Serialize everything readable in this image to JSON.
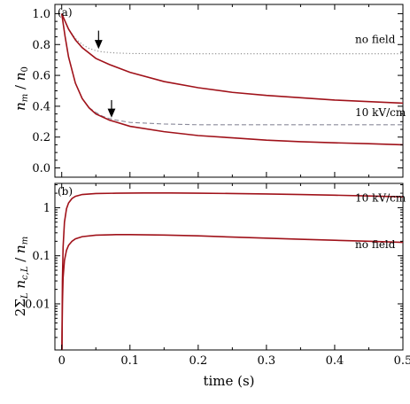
{
  "chart_data": [
    {
      "type": "line",
      "panel_label": "(a)",
      "xlabel": "",
      "ylabel_html": "n_m / n_0",
      "xlim": [
        -0.01,
        0.5
      ],
      "ylim": [
        -0.06,
        1.06
      ],
      "xticks": [
        0,
        0.1,
        0.2,
        0.3,
        0.4,
        0.5
      ],
      "yticks": [
        0.0,
        0.2,
        0.4,
        0.6,
        0.8,
        1.0
      ],
      "ytick_labels": [
        "0.0",
        "0.2",
        "0.4",
        "0.6",
        "0.8",
        "1.0"
      ],
      "series": [
        {
          "style": "dotted",
          "color": "#888888",
          "x": [
            0,
            0.005,
            0.01,
            0.02,
            0.03,
            0.04,
            0.05,
            0.06,
            0.08,
            0.1,
            0.15,
            0.2,
            0.3,
            0.4,
            0.5
          ],
          "y": [
            1.0,
            0.95,
            0.9,
            0.84,
            0.8,
            0.775,
            0.76,
            0.752,
            0.745,
            0.742,
            0.74,
            0.74,
            0.74,
            0.74,
            0.74
          ]
        },
        {
          "style": "solid",
          "color": "#a0121a",
          "x": [
            0,
            0.005,
            0.01,
            0.02,
            0.03,
            0.05,
            0.07,
            0.1,
            0.15,
            0.2,
            0.25,
            0.3,
            0.35,
            0.4,
            0.45,
            0.5
          ],
          "y": [
            1.0,
            0.95,
            0.9,
            0.83,
            0.78,
            0.71,
            0.67,
            0.62,
            0.56,
            0.52,
            0.49,
            0.47,
            0.455,
            0.44,
            0.43,
            0.42
          ]
        },
        {
          "style": "dashed",
          "color": "#8a8a9a",
          "x": [
            0,
            0.005,
            0.01,
            0.02,
            0.03,
            0.04,
            0.05,
            0.06,
            0.07,
            0.08,
            0.1,
            0.15,
            0.2,
            0.3,
            0.4,
            0.5
          ],
          "y": [
            1.0,
            0.85,
            0.72,
            0.55,
            0.45,
            0.39,
            0.36,
            0.335,
            0.32,
            0.31,
            0.295,
            0.285,
            0.28,
            0.28,
            0.28,
            0.28
          ]
        },
        {
          "style": "solid",
          "color": "#a0121a",
          "x": [
            0,
            0.005,
            0.01,
            0.02,
            0.03,
            0.04,
            0.05,
            0.07,
            0.1,
            0.15,
            0.2,
            0.25,
            0.3,
            0.35,
            0.4,
            0.45,
            0.5
          ],
          "y": [
            1.0,
            0.85,
            0.72,
            0.55,
            0.45,
            0.39,
            0.35,
            0.31,
            0.27,
            0.235,
            0.21,
            0.195,
            0.18,
            0.17,
            0.163,
            0.157,
            0.15
          ]
        }
      ],
      "annotations": [
        {
          "text": "no field",
          "x": 0.43,
          "y": 0.81
        },
        {
          "text": "10 kV/cm",
          "x": 0.43,
          "y": 0.335
        }
      ],
      "arrows": [
        {
          "x": 0.054,
          "y_from": 0.89,
          "y_to": 0.78
        },
        {
          "x": 0.073,
          "y_from": 0.44,
          "y_to": 0.335
        }
      ]
    },
    {
      "type": "line",
      "panel_label": "(b)",
      "xlabel": "time (s)",
      "ylabel_html": "2Σ_L n_{c,L} / n_m",
      "xlim": [
        -0.01,
        0.5
      ],
      "ylog": true,
      "ylim": [
        0.0011,
        3.2
      ],
      "xticks": [
        0,
        0.1,
        0.2,
        0.3,
        0.4,
        0.5
      ],
      "xtick_labels": [
        "0",
        "0.1",
        "0.2",
        "0.3",
        "0.4",
        "0.5"
      ],
      "yticks": [
        0.01,
        0.1,
        1
      ],
      "ytick_labels": [
        "0.01",
        "0.1",
        "1"
      ],
      "series": [
        {
          "style": "solid",
          "color": "#a0121a",
          "x": [
            0.0003,
            0.001,
            0.002,
            0.004,
            0.007,
            0.01,
            0.015,
            0.02,
            0.03,
            0.05,
            0.08,
            0.12,
            0.16,
            0.2,
            0.25,
            0.3,
            0.35,
            0.4,
            0.45,
            0.5
          ],
          "y": [
            0.0011,
            0.03,
            0.15,
            0.5,
            0.95,
            1.25,
            1.55,
            1.72,
            1.88,
            1.97,
            2.0,
            2.02,
            2.02,
            2.0,
            1.97,
            1.93,
            1.88,
            1.82,
            1.75,
            1.68
          ]
        },
        {
          "style": "solid",
          "color": "#a0121a",
          "x": [
            0.0003,
            0.001,
            0.002,
            0.004,
            0.007,
            0.01,
            0.015,
            0.02,
            0.03,
            0.05,
            0.08,
            0.1,
            0.15,
            0.2,
            0.25,
            0.3,
            0.35,
            0.4,
            0.45,
            0.5
          ],
          "y": [
            0.0011,
            0.01,
            0.035,
            0.08,
            0.13,
            0.165,
            0.2,
            0.225,
            0.25,
            0.268,
            0.275,
            0.275,
            0.27,
            0.26,
            0.245,
            0.232,
            0.22,
            0.21,
            0.2,
            0.19
          ]
        }
      ],
      "annotations": [
        {
          "text": "10 kV/cm",
          "x": 0.43,
          "y": 1.33
        },
        {
          "text": "no field",
          "x": 0.43,
          "y": 0.145
        }
      ]
    }
  ]
}
